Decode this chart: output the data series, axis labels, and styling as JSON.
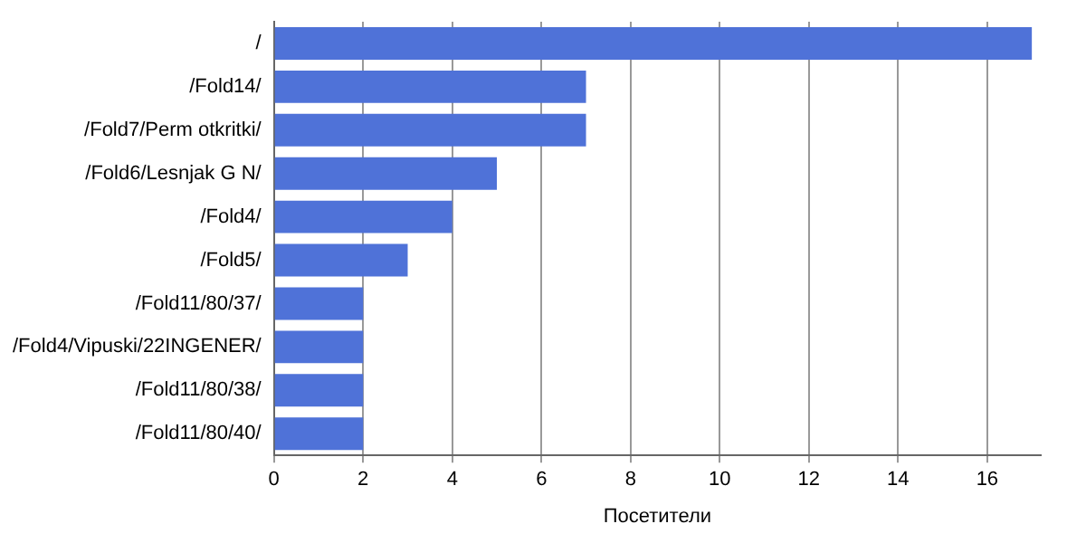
{
  "chart_data": {
    "type": "bar",
    "orientation": "horizontal",
    "xlabel": "Посетители",
    "categories": [
      "/",
      "/Fold14/",
      "/Fold7/Perm otkritki/",
      "/Fold6/Lesnjak G N/",
      "/Fold4/",
      "/Fold5/",
      "/Fold11/80/37/",
      "/Fold4/Vipuski/22INGENER/",
      "/Fold11/80/38/",
      "/Fold11/80/40/"
    ],
    "values": [
      17,
      7,
      7,
      5,
      4,
      3,
      2,
      2,
      2,
      2
    ],
    "color": "#4f72d8",
    "xlim": [
      0,
      17.2
    ],
    "xticks": [
      0,
      2,
      4,
      6,
      8,
      10,
      12,
      14,
      16
    ],
    "grid": "x",
    "legend": false
  }
}
